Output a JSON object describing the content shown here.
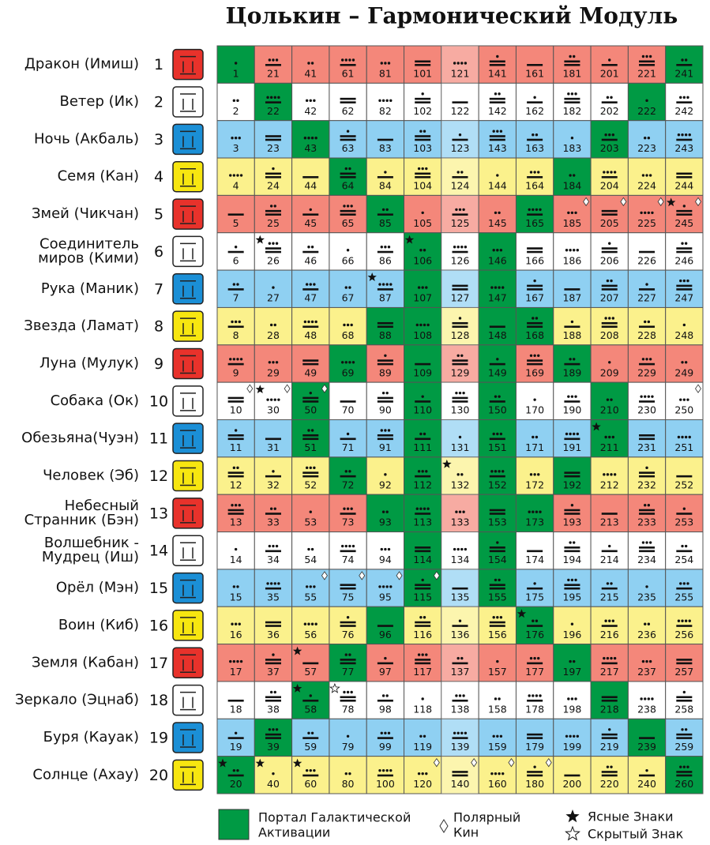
{
  "title": "Цолькин – Гармонический Модуль",
  "rows": [
    {
      "name": [
        "Дракон (Имиш)"
      ],
      "number": 1,
      "color": "#f4877a",
      "seal_color": "#e8322b"
    },
    {
      "name": [
        "Ветер (Ик)"
      ],
      "number": 2,
      "color": "#ffffff",
      "seal_color": "#ffffff"
    },
    {
      "name": [
        "Ночь (Акбаль)"
      ],
      "number": 3,
      "color": "#8fd0f2",
      "seal_color": "#1b8fd6"
    },
    {
      "name": [
        "Семя (Кан)"
      ],
      "number": 4,
      "color": "#fbf18c",
      "seal_color": "#f7e610"
    },
    {
      "name": [
        "Змей (Чикчан)"
      ],
      "number": 5,
      "color": "#f4877a",
      "seal_color": "#e8322b"
    },
    {
      "name": [
        "Соединитель",
        "миров (Кими)"
      ],
      "number": 6,
      "color": "#ffffff",
      "seal_color": "#ffffff"
    },
    {
      "name": [
        "Рука (Маник)"
      ],
      "number": 7,
      "color": "#8fd0f2",
      "seal_color": "#1b8fd6"
    },
    {
      "name": [
        "Звезда (Ламат)"
      ],
      "number": 8,
      "color": "#fbf18c",
      "seal_color": "#f7e610"
    },
    {
      "name": [
        "Луна (Мулук)"
      ],
      "number": 9,
      "color": "#f4877a",
      "seal_color": "#e8322b"
    },
    {
      "name": [
        "Собака (Ок)"
      ],
      "number": 10,
      "color": "#ffffff",
      "seal_color": "#ffffff"
    },
    {
      "name": [
        "Обезьяна(Чуэн)"
      ],
      "number": 11,
      "color": "#8fd0f2",
      "seal_color": "#1b8fd6"
    },
    {
      "name": [
        "Человек (Эб)"
      ],
      "number": 12,
      "color": "#fbf18c",
      "seal_color": "#f7e610"
    },
    {
      "name": [
        "Небесный",
        "Странник (Бэн)"
      ],
      "number": 13,
      "color": "#f4877a",
      "seal_color": "#e8322b"
    },
    {
      "name": [
        "Волшебник -",
        "Мудрец (Иш)"
      ],
      "number": 14,
      "color": "#ffffff",
      "seal_color": "#ffffff"
    },
    {
      "name": [
        "Орёл (Мэн)"
      ],
      "number": 15,
      "color": "#8fd0f2",
      "seal_color": "#1b8fd6"
    },
    {
      "name": [
        "Воин (Киб)"
      ],
      "number": 16,
      "color": "#fbf18c",
      "seal_color": "#f7e610"
    },
    {
      "name": [
        "Земля (Кабан)"
      ],
      "number": 17,
      "color": "#f4877a",
      "seal_color": "#e8322b"
    },
    {
      "name": [
        "Зеркало (Эцнаб)"
      ],
      "number": 18,
      "color": "#ffffff",
      "seal_color": "#ffffff"
    },
    {
      "name": [
        "Буря (Кауак)"
      ],
      "number": 19,
      "color": "#8fd0f2",
      "seal_color": "#1b8fd6"
    },
    {
      "name": [
        "Солнце (Ахау)"
      ],
      "number": 20,
      "color": "#fbf18c",
      "seal_color": "#f7e610"
    }
  ],
  "kins": [
    [
      1,
      21,
      41,
      61,
      81,
      101,
      121,
      141,
      161,
      181,
      201,
      221,
      241
    ],
    [
      2,
      22,
      42,
      62,
      82,
      102,
      122,
      142,
      162,
      182,
      202,
      222,
      242
    ],
    [
      3,
      23,
      43,
      63,
      83,
      103,
      123,
      143,
      163,
      183,
      203,
      223,
      243
    ],
    [
      4,
      24,
      44,
      64,
      84,
      104,
      124,
      144,
      164,
      184,
      204,
      224,
      244
    ],
    [
      5,
      25,
      45,
      65,
      85,
      105,
      125,
      145,
      165,
      185,
      205,
      225,
      245
    ],
    [
      6,
      26,
      46,
      66,
      86,
      106,
      126,
      146,
      166,
      186,
      206,
      226,
      246
    ],
    [
      7,
      27,
      47,
      67,
      87,
      107,
      127,
      147,
      167,
      187,
      207,
      227,
      247
    ],
    [
      8,
      28,
      48,
      68,
      88,
      108,
      128,
      148,
      168,
      188,
      208,
      228,
      248
    ],
    [
      9,
      29,
      49,
      69,
      89,
      109,
      129,
      149,
      169,
      189,
      209,
      229,
      249
    ],
    [
      10,
      30,
      50,
      70,
      90,
      110,
      130,
      150,
      170,
      190,
      210,
      230,
      250
    ],
    [
      11,
      31,
      51,
      71,
      91,
      111,
      131,
      151,
      171,
      191,
      211,
      231,
      251
    ],
    [
      12,
      32,
      52,
      72,
      92,
      112,
      132,
      152,
      172,
      192,
      212,
      232,
      252
    ],
    [
      13,
      33,
      53,
      73,
      93,
      113,
      133,
      153,
      173,
      193,
      213,
      233,
      253
    ],
    [
      14,
      34,
      54,
      74,
      94,
      114,
      134,
      154,
      174,
      194,
      214,
      234,
      254
    ],
    [
      15,
      35,
      55,
      75,
      95,
      115,
      135,
      155,
      175,
      195,
      215,
      235,
      255
    ],
    [
      16,
      36,
      56,
      76,
      96,
      116,
      136,
      156,
      176,
      196,
      216,
      236,
      256
    ],
    [
      17,
      37,
      57,
      77,
      97,
      117,
      137,
      157,
      177,
      197,
      217,
      237,
      257
    ],
    [
      18,
      38,
      58,
      78,
      98,
      118,
      138,
      158,
      178,
      198,
      218,
      238,
      258
    ],
    [
      19,
      39,
      59,
      79,
      99,
      119,
      139,
      159,
      179,
      199,
      219,
      239,
      259
    ],
    [
      20,
      40,
      60,
      80,
      100,
      120,
      140,
      160,
      180,
      200,
      220,
      240,
      260
    ]
  ],
  "portal_color": "#009a44",
  "portal_kins": [
    1,
    20,
    22,
    39,
    43,
    50,
    51,
    58,
    64,
    69,
    72,
    77,
    85,
    88,
    93,
    96,
    106,
    107,
    108,
    109,
    110,
    111,
    112,
    113,
    114,
    115,
    146,
    147,
    148,
    149,
    150,
    151,
    152,
    153,
    154,
    155,
    165,
    168,
    173,
    176,
    184,
    189,
    192,
    197,
    203,
    210,
    211,
    218,
    222,
    239,
    241,
    260
  ],
  "clear_sign_kins": [
    20,
    26,
    30,
    40,
    57,
    58,
    60,
    87,
    106,
    132,
    176,
    211,
    245
  ],
  "hidden_sign_kins": [
    78
  ],
  "polar_kins": [
    10,
    30,
    50,
    55,
    75,
    95,
    115,
    120,
    140,
    160,
    180,
    185,
    205,
    225,
    245,
    250
  ],
  "legend": {
    "portal": [
      "Портал Галактической",
      "Активации"
    ],
    "polar": [
      "Полярный",
      "Кин"
    ],
    "clear": "Ясные Знаки",
    "hidden": "Скрытый Знак"
  }
}
